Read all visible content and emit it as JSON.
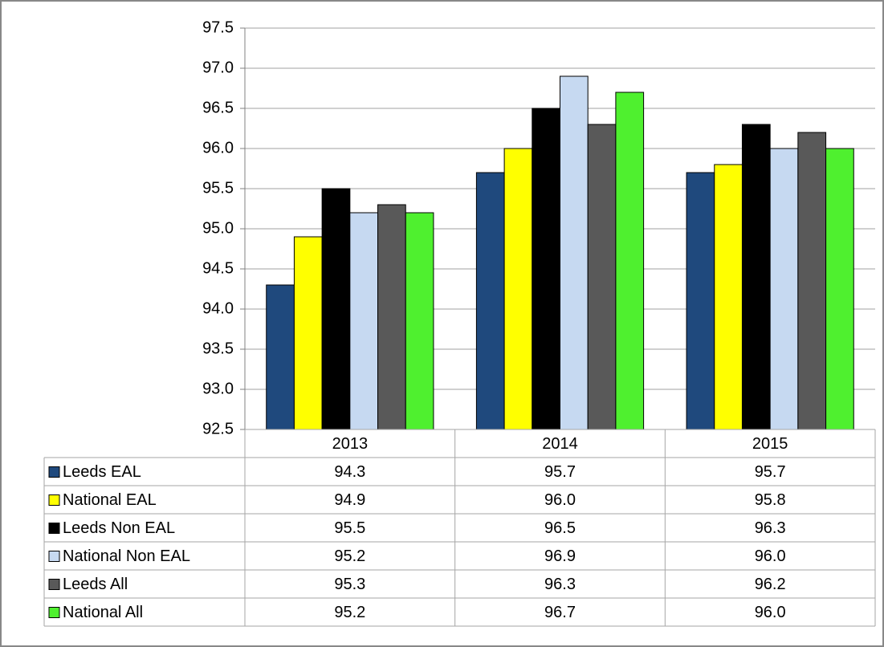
{
  "chart_data": {
    "type": "bar",
    "categories": [
      "2013",
      "2014",
      "2015"
    ],
    "series": [
      {
        "name": "Leeds EAL",
        "color": "#1f497d",
        "values": [
          94.3,
          95.7,
          95.7
        ],
        "value_labels": [
          "94.3",
          "95.7",
          "95.7"
        ]
      },
      {
        "name": "National EAL",
        "color": "#ffff00",
        "values": [
          94.9,
          96.0,
          95.8
        ],
        "value_labels": [
          "94.9",
          "96.0",
          "95.8"
        ]
      },
      {
        "name": "Leeds Non EAL",
        "color": "#000000",
        "values": [
          95.5,
          96.5,
          96.3
        ],
        "value_labels": [
          "95.5",
          "96.5",
          "96.3"
        ]
      },
      {
        "name": "National Non EAL",
        "color": "#c6d9f1",
        "values": [
          95.2,
          96.9,
          96.0
        ],
        "value_labels": [
          "95.2",
          "96.9",
          "96.0"
        ]
      },
      {
        "name": "Leeds All",
        "color": "#595959",
        "values": [
          95.3,
          96.3,
          96.2
        ],
        "value_labels": [
          "95.3",
          "96.3",
          "96.2"
        ]
      },
      {
        "name": "National All",
        "color": "#4ff02f",
        "values": [
          95.2,
          96.7,
          96.0
        ],
        "value_labels": [
          "95.2",
          "96.7",
          "96.0"
        ]
      }
    ],
    "ylim": [
      92.5,
      97.5
    ],
    "yticks": [
      92.5,
      {
        "value": 93,
        "label": "93.0"
      },
      93.5,
      {
        "value": 94,
        "label": "94.0"
      },
      94.5,
      {
        "value": 95,
        "label": "95.0"
      },
      95.5,
      {
        "value": 96,
        "label": "96.0"
      },
      96.5,
      {
        "value": 97,
        "label": "97.0"
      },
      97.5
    ],
    "grid": true
  }
}
